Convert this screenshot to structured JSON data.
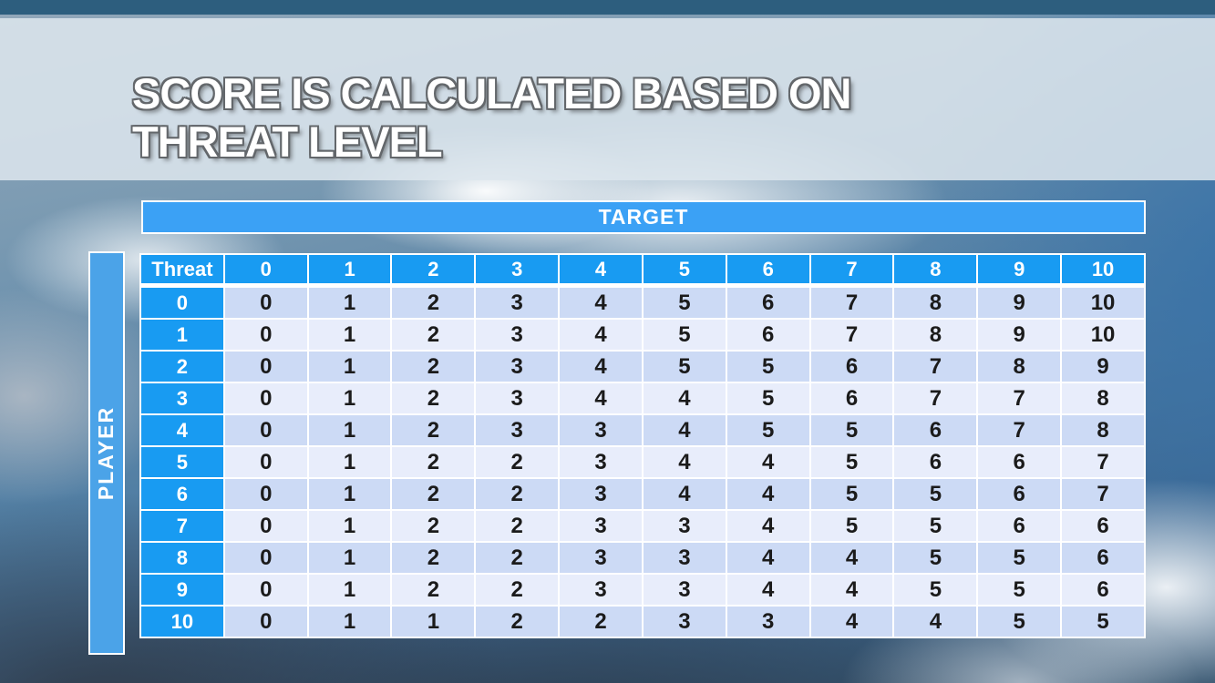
{
  "slide": {
    "title_line1": "SCORE IS CALCULATED BASED ON",
    "title_line2": "THREAT LEVEL"
  },
  "matrix": {
    "target_label": "TARGET",
    "player_label": "PLAYER",
    "corner_label": "Threat",
    "col_headers": [
      "0",
      "1",
      "2",
      "3",
      "4",
      "5",
      "6",
      "7",
      "8",
      "9",
      "10"
    ],
    "row_headers": [
      "0",
      "1",
      "2",
      "3",
      "4",
      "5",
      "6",
      "7",
      "8",
      "9",
      "10"
    ],
    "rows": [
      [
        0,
        1,
        2,
        3,
        4,
        5,
        6,
        7,
        8,
        9,
        10
      ],
      [
        0,
        1,
        2,
        3,
        4,
        5,
        6,
        7,
        8,
        9,
        10
      ],
      [
        0,
        1,
        2,
        3,
        4,
        5,
        5,
        6,
        7,
        8,
        9
      ],
      [
        0,
        1,
        2,
        3,
        4,
        4,
        5,
        6,
        7,
        7,
        8
      ],
      [
        0,
        1,
        2,
        3,
        3,
        4,
        5,
        5,
        6,
        7,
        8
      ],
      [
        0,
        1,
        2,
        2,
        3,
        4,
        4,
        5,
        6,
        6,
        7
      ],
      [
        0,
        1,
        2,
        2,
        3,
        4,
        4,
        5,
        5,
        6,
        7
      ],
      [
        0,
        1,
        2,
        2,
        3,
        3,
        4,
        5,
        5,
        6,
        6
      ],
      [
        0,
        1,
        2,
        2,
        3,
        3,
        4,
        4,
        5,
        5,
        6
      ],
      [
        0,
        1,
        2,
        2,
        3,
        3,
        4,
        4,
        5,
        5,
        6
      ],
      [
        0,
        1,
        1,
        2,
        2,
        3,
        3,
        4,
        4,
        5,
        5
      ]
    ]
  },
  "colors": {
    "top_bar": "#2d5e7e",
    "title_band": "rgba(221,230,237,0.86)",
    "header_blue": "#189bf2",
    "target_bar_blue": "#3ba1f5",
    "player_bar_blue": "#4ba3e8",
    "row_band_dark": "#ccdaf5",
    "row_band_light": "#e8edfb",
    "cell_text": "#1b1b1b"
  }
}
